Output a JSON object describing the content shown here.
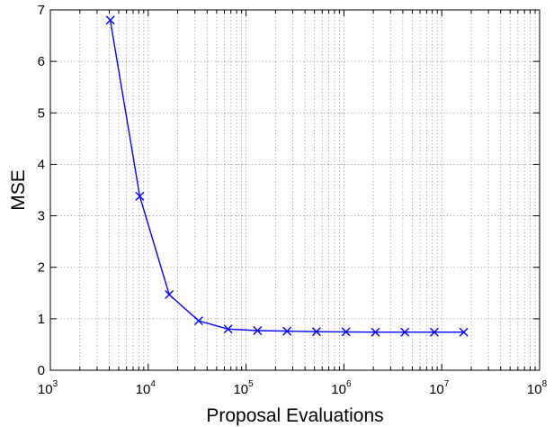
{
  "chart_data": {
    "type": "line",
    "title": "",
    "xlabel": "Proposal Evaluations",
    "ylabel": "MSE",
    "xscale": "log",
    "xlim": [
      1000,
      100000000
    ],
    "ylim": [
      0,
      7
    ],
    "grid": true,
    "x_tick_base": "10",
    "x_tick_exponents": [
      "3",
      "4",
      "5",
      "6",
      "7",
      "8"
    ],
    "y_ticks": [
      "0",
      "1",
      "2",
      "3",
      "4",
      "5",
      "6",
      "7"
    ],
    "line_color": "#0000ff",
    "marker": "x",
    "series": [
      {
        "x": [
          4096,
          8192,
          16384,
          32768,
          65536,
          131072,
          262144,
          524288,
          1048576,
          2097152,
          4194304,
          8388608,
          16777216
        ],
        "y": [
          6.8,
          3.38,
          1.47,
          0.96,
          0.8,
          0.77,
          0.76,
          0.75,
          0.745,
          0.74,
          0.74,
          0.74,
          0.74
        ]
      }
    ]
  }
}
